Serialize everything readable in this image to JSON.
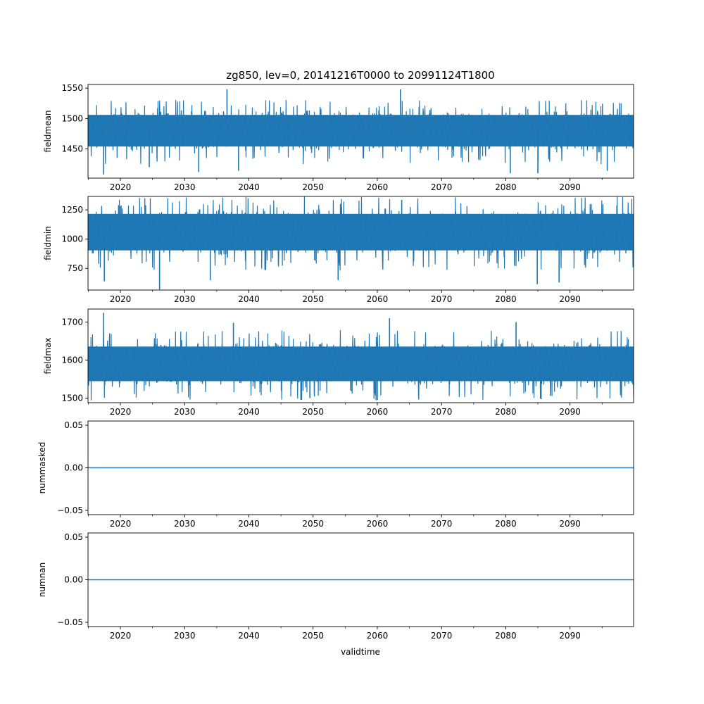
{
  "chart_data": {
    "type": "line",
    "title": "zg850, lev=0, 20141216T0000 to 20991124T1800",
    "xlabel": "validtime",
    "xlim": [
      2014.96,
      2099.9
    ],
    "x_major_ticks": [
      2020,
      2030,
      2040,
      2050,
      2060,
      2070,
      2080,
      2090
    ],
    "x_minor_ticks": [
      2015,
      2025,
      2035,
      2045,
      2055,
      2065,
      2075,
      2085,
      2095
    ],
    "x_tick_labels": [
      "2020",
      "2030",
      "2040",
      "2050",
      "2060",
      "2070",
      "2080",
      "2090"
    ],
    "grid": false,
    "color": "#1f77b4",
    "panels": [
      {
        "ylabel": "fieldmean",
        "ylim": [
          1402,
          1556
        ],
        "yticks": [
          1450,
          1500,
          1550
        ],
        "ytick_labels": [
          "1450",
          "1500",
          "1550"
        ],
        "typical_range": [
          1440,
          1520
        ],
        "extremes": [
          {
            "x": 2017.4,
            "y": 1408
          },
          {
            "x": 2024.5,
            "y": 1420
          },
          {
            "x": 2032.2,
            "y": 1412
          },
          {
            "x": 2036.6,
            "y": 1548
          },
          {
            "x": 2038.4,
            "y": 1414
          },
          {
            "x": 2063.6,
            "y": 1548
          },
          {
            "x": 2080.7,
            "y": 1410
          },
          {
            "x": 2085.0,
            "y": 1410
          },
          {
            "x": 2095.8,
            "y": 1414
          }
        ]
      },
      {
        "ylabel": "fieldmin",
        "ylim": [
          565,
          1365
        ],
        "yticks": [
          750,
          1000,
          1250
        ],
        "ytick_labels": [
          "750",
          "1000",
          "1250"
        ],
        "typical_range": [
          820,
          1300
        ],
        "extremes": [
          {
            "x": 2026.1,
            "y": 570
          },
          {
            "x": 2017.5,
            "y": 640
          },
          {
            "x": 2034.0,
            "y": 650
          },
          {
            "x": 2053.9,
            "y": 650
          },
          {
            "x": 2084.9,
            "y": 615
          },
          {
            "x": 2088.3,
            "y": 630
          },
          {
            "x": 2063.8,
            "y": 1335
          }
        ]
      },
      {
        "ylabel": "fieldmax",
        "ylim": [
          1488,
          1734
        ],
        "yticks": [
          1500,
          1600,
          1700
        ],
        "ytick_labels": [
          "1500",
          "1600",
          "1700"
        ],
        "typical_range": [
          1520,
          1660
        ],
        "extremes": [
          {
            "x": 2017.4,
            "y": 1724
          },
          {
            "x": 2061.9,
            "y": 1710
          },
          {
            "x": 2081.6,
            "y": 1700
          },
          {
            "x": 2037.6,
            "y": 1698
          },
          {
            "x": 2049.5,
            "y": 1500
          },
          {
            "x": 2060.0,
            "y": 1495
          },
          {
            "x": 2085.5,
            "y": 1497
          }
        ]
      },
      {
        "ylabel": "nummasked",
        "ylim": [
          -0.055,
          0.055
        ],
        "yticks": [
          -0.05,
          0.0,
          0.05
        ],
        "ytick_labels": [
          "−0.05",
          "0.00",
          "0.05"
        ],
        "constant": 0.0
      },
      {
        "ylabel": "numnan",
        "ylim": [
          -0.055,
          0.055
        ],
        "yticks": [
          -0.05,
          0.0,
          0.05
        ],
        "ytick_labels": [
          "−0.05",
          "0.00",
          "0.05"
        ],
        "constant": 0.0
      }
    ]
  }
}
